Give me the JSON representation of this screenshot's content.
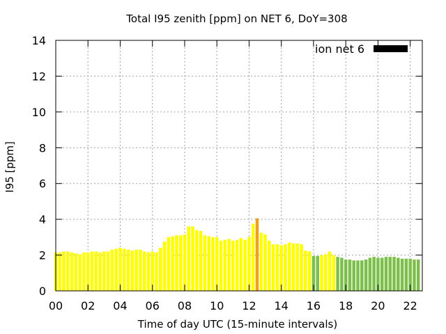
{
  "chart_data": {
    "type": "bar",
    "title": "Total I95 zenith [ppm] on NET 6, DoY=308",
    "xlabel": "Time of day UTC (15-minute intervals)",
    "ylabel": "I95 [ppm]",
    "xlim": [
      0,
      22.75
    ],
    "ylim": [
      0,
      14
    ],
    "x_tick_labels": [
      "00",
      "02",
      "04",
      "06",
      "08",
      "10",
      "12",
      "14",
      "16",
      "18",
      "20",
      "22"
    ],
    "y_tick_labels": [
      "0",
      "2",
      "4",
      "6",
      "8",
      "10",
      "12",
      "14"
    ],
    "grid": true,
    "legend": {
      "label": "ion net 6",
      "position": "top-right",
      "swatch_color": "#000000"
    },
    "interval_hours": 0.25,
    "values": [
      2.15,
      2.15,
      2.2,
      2.2,
      2.15,
      2.1,
      2.05,
      2.15,
      2.15,
      2.2,
      2.2,
      2.15,
      2.2,
      2.2,
      2.3,
      2.35,
      2.4,
      2.35,
      2.3,
      2.25,
      2.3,
      2.3,
      2.2,
      2.15,
      2.2,
      2.15,
      2.4,
      2.75,
      3.0,
      3.05,
      3.1,
      3.1,
      3.15,
      3.6,
      3.6,
      3.4,
      3.35,
      3.1,
      3.05,
      3.0,
      3.0,
      2.8,
      2.85,
      2.9,
      2.8,
      2.85,
      2.95,
      2.85,
      3.0,
      3.75,
      4.05,
      3.25,
      3.15,
      2.8,
      2.6,
      2.6,
      2.55,
      2.6,
      2.7,
      2.65,
      2.65,
      2.6,
      2.25,
      2.2,
      1.95,
      1.95,
      2.0,
      2.05,
      2.2,
      2.0,
      1.9,
      1.85,
      1.75,
      1.75,
      1.7,
      1.7,
      1.7,
      1.75,
      1.85,
      1.9,
      1.85,
      1.85,
      1.9,
      1.9,
      1.9,
      1.85,
      1.8,
      1.8,
      1.8,
      1.75,
      1.75
    ],
    "bar_colors": [
      "#ffff00",
      "#ffff00",
      "#ffff00",
      "#ffff00",
      "#ffff00",
      "#ffff00",
      "#ffff00",
      "#ffff00",
      "#ffff00",
      "#ffff00",
      "#ffff00",
      "#ffff00",
      "#ffff00",
      "#ffff00",
      "#ffff00",
      "#ffff00",
      "#ffff00",
      "#ffff00",
      "#ffff00",
      "#ffff00",
      "#ffff00",
      "#ffff00",
      "#ffff00",
      "#ffff00",
      "#ffff00",
      "#ffff00",
      "#ffff00",
      "#ffff00",
      "#ffff00",
      "#ffff00",
      "#ffff00",
      "#ffff00",
      "#ffff00",
      "#ffff00",
      "#ffff00",
      "#ffff00",
      "#ffff00",
      "#ffff00",
      "#ffff00",
      "#ffff00",
      "#ffff00",
      "#ffff00",
      "#ffff00",
      "#ffff00",
      "#ffff00",
      "#ffff00",
      "#ffff00",
      "#ffff00",
      "#ffff00",
      "#ffff00",
      "#f0a020",
      "#ffff00",
      "#ffff00",
      "#ffff00",
      "#ffff00",
      "#ffff00",
      "#ffff00",
      "#ffff00",
      "#ffff00",
      "#ffff00",
      "#ffff00",
      "#ffff00",
      "#ffff00",
      "#ffff00",
      "#7cbf4a",
      "#7cbf4a",
      "#ffff00",
      "#ffff00",
      "#ffff00",
      "#ffff00",
      "#7cbf4a",
      "#7cbf4a",
      "#7cbf4a",
      "#7cbf4a",
      "#7cbf4a",
      "#7cbf4a",
      "#7cbf4a",
      "#7cbf4a",
      "#7cbf4a",
      "#7cbf4a",
      "#7cbf4a",
      "#7cbf4a",
      "#7cbf4a",
      "#7cbf4a",
      "#7cbf4a",
      "#7cbf4a",
      "#7cbf4a",
      "#7cbf4a",
      "#7cbf4a",
      "#7cbf4a",
      "#7cbf4a"
    ]
  }
}
